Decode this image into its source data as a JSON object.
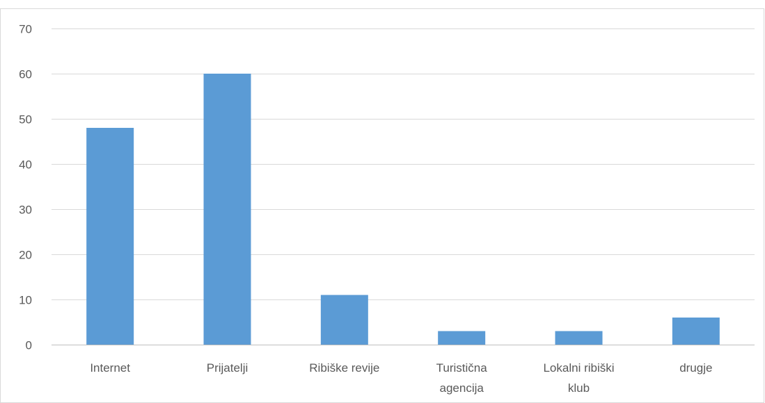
{
  "chart_data": {
    "type": "bar",
    "categories": [
      [
        "Internet"
      ],
      [
        "Prijatelji"
      ],
      [
        "Ribiške revije"
      ],
      [
        "Turistična",
        "agencija"
      ],
      [
        "Lokalni ribiški",
        "klub"
      ],
      [
        "drugje"
      ]
    ],
    "values": [
      48,
      60,
      11,
      3,
      3,
      6
    ],
    "ylim": [
      0,
      70
    ],
    "yticks": [
      0,
      10,
      20,
      30,
      40,
      50,
      60,
      70
    ],
    "grid": true,
    "legend": "none",
    "colors": {
      "bar": "#5b9bd5",
      "grid": "#d9d9d9",
      "axis": "#bfbfbf",
      "text": "#595959",
      "frame": "#d9d9d9"
    }
  }
}
